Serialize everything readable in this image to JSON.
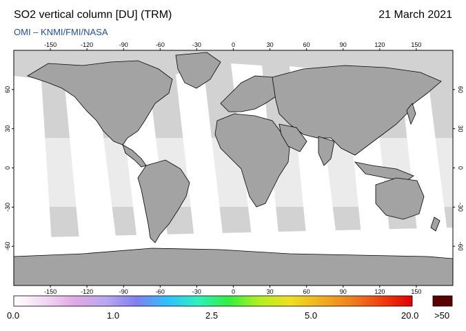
{
  "header": {
    "title": "SO2 vertical column [DU] (TRM)",
    "date": "21 March 2021",
    "credit": "OMI  –  KNMI/FMI/NASA"
  },
  "map": {
    "lon_ticks": [
      "-150",
      "-120",
      "-90",
      "-60",
      "-30",
      "0",
      "30",
      "60",
      "90",
      "120",
      "150"
    ],
    "lat_ticks": [
      "60",
      "30",
      "0",
      "-30",
      "-60"
    ],
    "colors": {
      "land": "#a3a3a3",
      "ocean_no_data": "#d2d2d2",
      "swath": "#ffffff",
      "coastline": "#000000"
    }
  },
  "colorbar": {
    "labels": [
      "0.0",
      "1.0",
      "2.5",
      "5.0",
      "20.0",
      ">50"
    ],
    "gradient": [
      "#ffffff",
      "#f2d9f2",
      "#e0a8e6",
      "#b8a8f0",
      "#8080f0",
      "#30c0ff",
      "#30f0c0",
      "#30f040",
      "#b0f020",
      "#f0e020",
      "#f0b020",
      "#f08020",
      "#f04010",
      "#e00000"
    ],
    "over_color": "#5a0000"
  }
}
